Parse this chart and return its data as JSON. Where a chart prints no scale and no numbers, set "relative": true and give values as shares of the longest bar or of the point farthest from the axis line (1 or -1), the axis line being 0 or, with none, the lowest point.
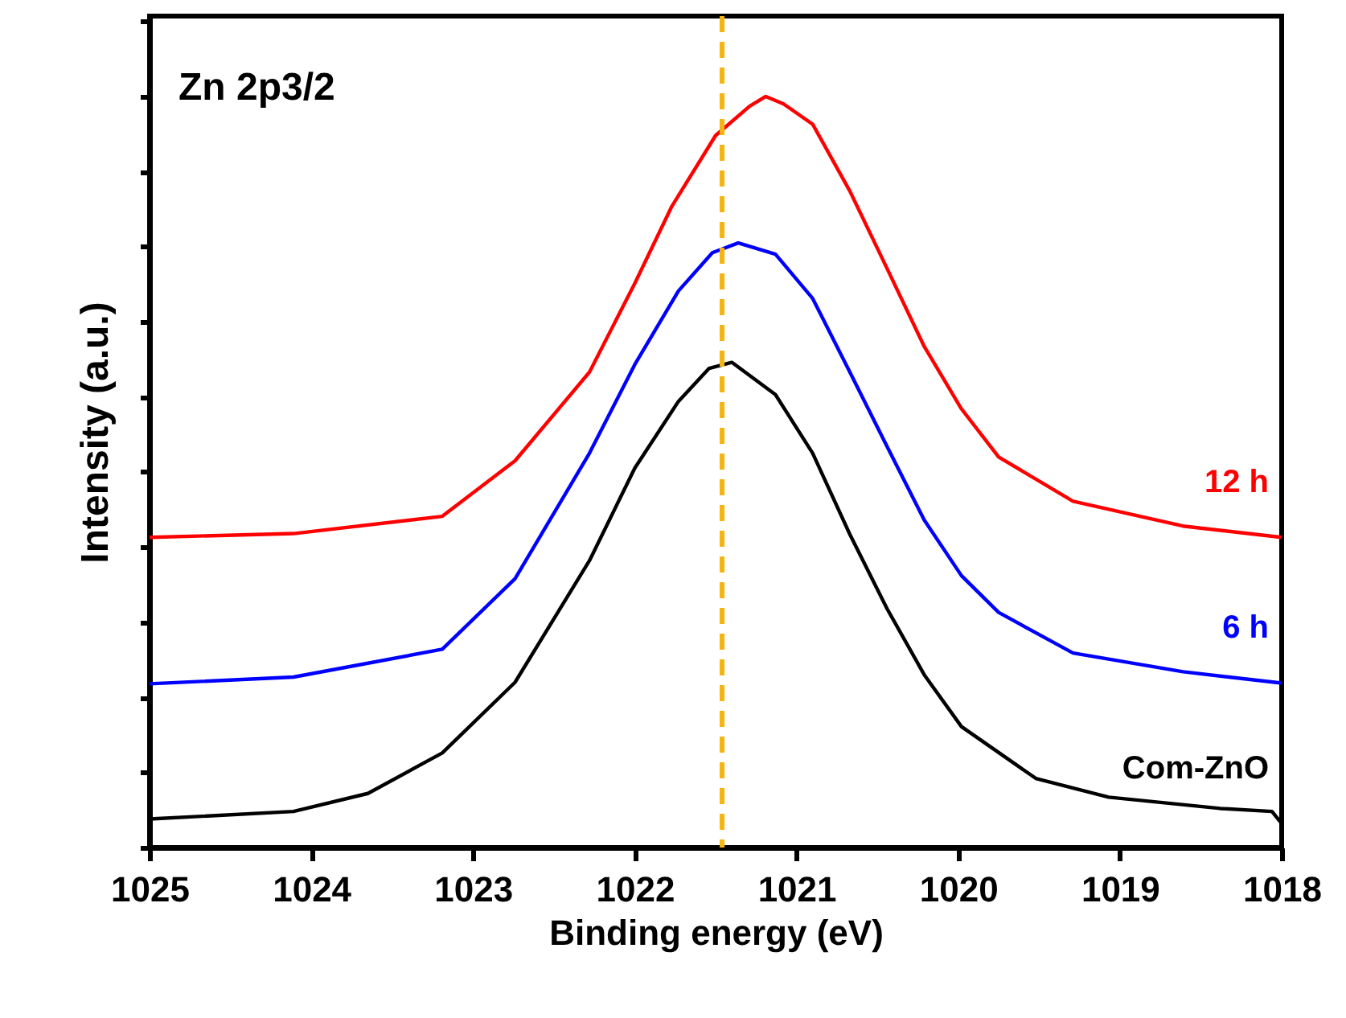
{
  "chart_data": {
    "type": "line",
    "title": "Zn 2p3/2",
    "xlabel": "Binding energy (eV)",
    "ylabel": "Intensity (a.u.)",
    "relative": true,
    "xlim": [
      1025,
      1018
    ],
    "xticks": [
      1025,
      1024,
      1023,
      1022,
      1021,
      1020,
      1019,
      1018
    ],
    "grid": false,
    "legend": false,
    "marker": "none",
    "line_style": "solid",
    "ref_lines": [
      {
        "axis": "x",
        "value": 1021.46,
        "color": "#f5b40f",
        "line_style": "dashed"
      }
    ],
    "series": [
      {
        "name": "12 h",
        "color": "#ff0000",
        "x": [
          1025.0,
          1024.11,
          1023.19,
          1022.74,
          1022.28,
          1022.0,
          1021.77,
          1021.5,
          1021.29,
          1021.19,
          1021.08,
          1020.9,
          1020.67,
          1020.44,
          1020.21,
          1019.98,
          1019.75,
          1019.29,
          1018.61,
          1018.0
        ],
        "values": [
          0.413,
          0.418,
          0.441,
          0.515,
          0.633,
          0.751,
          0.854,
          0.948,
          0.987,
          1.0,
          0.99,
          0.963,
          0.874,
          0.771,
          0.667,
          0.584,
          0.52,
          0.461,
          0.428,
          0.413
        ]
      },
      {
        "name": "6 h",
        "color": "#0000ff",
        "x": [
          1025.0,
          1024.11,
          1023.19,
          1022.74,
          1022.28,
          1022.0,
          1021.73,
          1021.52,
          1021.36,
          1021.13,
          1020.9,
          1020.67,
          1020.44,
          1020.21,
          1019.98,
          1019.75,
          1019.29,
          1018.61,
          1018.0
        ],
        "values": [
          0.218,
          0.227,
          0.264,
          0.358,
          0.525,
          0.643,
          0.741,
          0.792,
          0.805,
          0.79,
          0.731,
          0.633,
          0.534,
          0.436,
          0.362,
          0.313,
          0.259,
          0.234,
          0.219
        ]
      },
      {
        "name": "Com-ZnO",
        "color": "#000000",
        "x": [
          1025.0,
          1024.11,
          1023.65,
          1023.19,
          1022.74,
          1022.28,
          1022.0,
          1021.73,
          1021.54,
          1021.4,
          1021.13,
          1020.9,
          1020.67,
          1020.44,
          1020.21,
          1019.98,
          1019.52,
          1019.07,
          1018.38,
          1018.06,
          1018.0
        ],
        "values": [
          0.038,
          0.048,
          0.072,
          0.126,
          0.22,
          0.382,
          0.505,
          0.594,
          0.638,
          0.646,
          0.603,
          0.525,
          0.417,
          0.318,
          0.23,
          0.161,
          0.092,
          0.067,
          0.052,
          0.048,
          0.032
        ]
      }
    ]
  }
}
